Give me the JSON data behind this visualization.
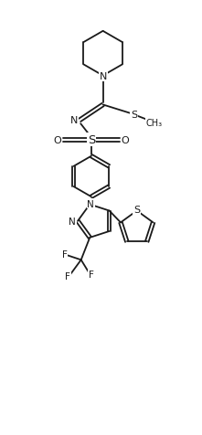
{
  "bg_color": "#ffffff",
  "line_color": "#1a1a1a",
  "line_width": 1.3,
  "font_size": 7.5,
  "figsize": [
    2.21,
    4.77
  ],
  "dpi": 100,
  "xlim": [
    0,
    10
  ],
  "ylim": [
    0,
    21.5
  ]
}
